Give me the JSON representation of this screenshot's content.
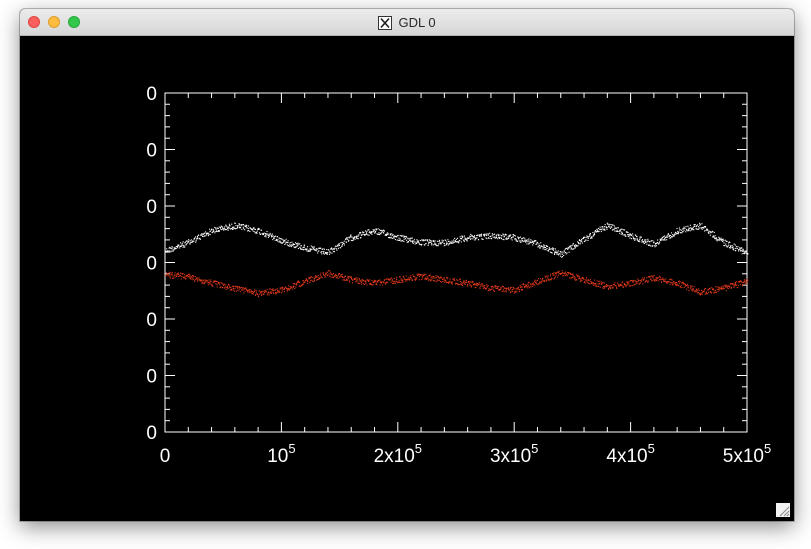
{
  "window": {
    "title": "GDL 0",
    "colors": {
      "close": "#fc605c",
      "minimize": "#fdbc40",
      "maximize": "#34c84a",
      "background": "#000000",
      "axes": "#ffffff"
    }
  },
  "chart_data": {
    "type": "scatter",
    "title": "",
    "xlabel": "",
    "ylabel": "",
    "xlim": [
      0,
      500000
    ],
    "x_tick_labels": [
      {
        "base": "0",
        "exp": ""
      },
      {
        "base": "10",
        "exp": "5"
      },
      {
        "base": "2x10",
        "exp": "5"
      },
      {
        "base": "3x10",
        "exp": "5"
      },
      {
        "base": "4x10",
        "exp": "5"
      },
      {
        "base": "5x10",
        "exp": "5"
      }
    ],
    "y_tick_labels": [
      "0",
      "0",
      "0",
      "0",
      "0",
      "0",
      "0"
    ],
    "grid": false,
    "series": [
      {
        "color": "#ffffff",
        "x": [
          0,
          20000,
          40000,
          60000,
          80000,
          100000,
          120000,
          140000,
          160000,
          180000,
          200000,
          220000,
          240000,
          260000,
          280000,
          300000,
          320000,
          340000,
          360000,
          380000,
          400000,
          420000,
          440000,
          460000,
          480000,
          500000
        ],
        "y": [
          0.465,
          0.44,
          0.405,
          0.39,
          0.405,
          0.435,
          0.455,
          0.47,
          0.425,
          0.405,
          0.425,
          0.44,
          0.44,
          0.425,
          0.42,
          0.425,
          0.445,
          0.475,
          0.43,
          0.39,
          0.42,
          0.445,
          0.405,
          0.39,
          0.44,
          0.47
        ]
      },
      {
        "color": "#e0391a",
        "x": [
          0,
          20000,
          40000,
          60000,
          80000,
          100000,
          120000,
          140000,
          160000,
          180000,
          200000,
          220000,
          240000,
          260000,
          280000,
          300000,
          320000,
          340000,
          360000,
          380000,
          400000,
          420000,
          440000,
          460000,
          480000,
          500000
        ],
        "y": [
          0.535,
          0.54,
          0.56,
          0.575,
          0.59,
          0.58,
          0.555,
          0.53,
          0.55,
          0.56,
          0.55,
          0.54,
          0.55,
          0.56,
          0.575,
          0.58,
          0.555,
          0.53,
          0.55,
          0.57,
          0.56,
          0.545,
          0.56,
          0.585,
          0.575,
          0.555
        ]
      }
    ]
  }
}
